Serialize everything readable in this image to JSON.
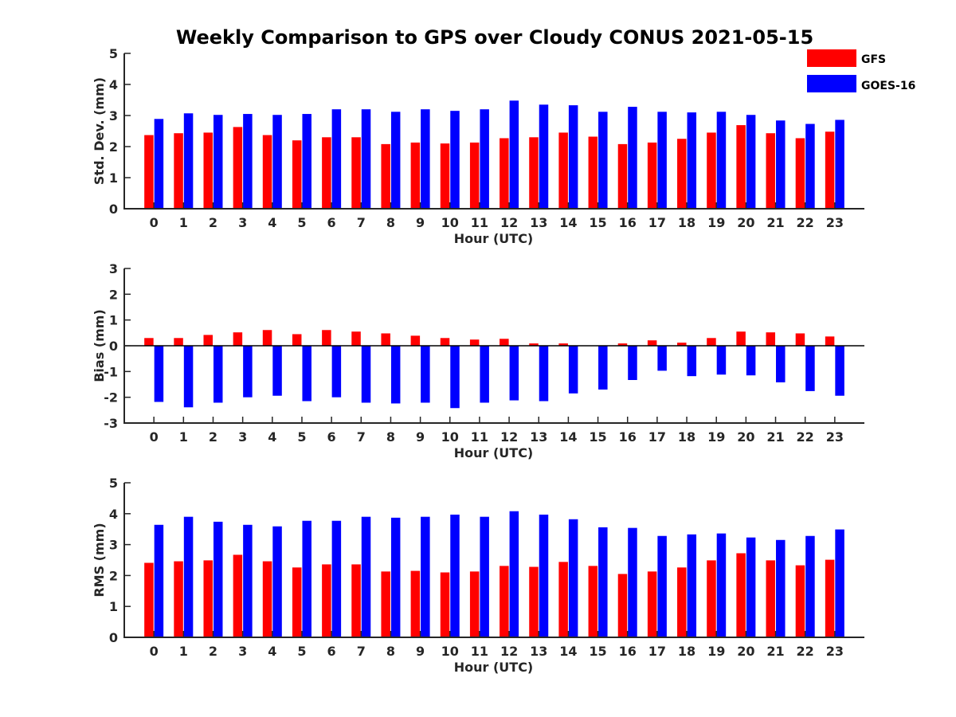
{
  "title": "Weekly Comparison to GPS over Cloudy CONUS 2021-05-15",
  "colors": {
    "GFS": "#ff0000",
    "GOES-16": "#0000ff"
  },
  "legend": {
    "placement": "top-right",
    "entries": [
      "GFS",
      "GOES-16"
    ]
  },
  "chart_data": [
    {
      "type": "bar",
      "xlabel": "Hour (UTC)",
      "ylabel": "Std. Dev. (mm)",
      "ylim": [
        0,
        5
      ],
      "yticks": [
        0,
        1,
        2,
        3,
        4,
        5
      ],
      "grid": false,
      "categories": [
        "0",
        "1",
        "2",
        "3",
        "4",
        "5",
        "6",
        "7",
        "8",
        "9",
        "10",
        "11",
        "12",
        "13",
        "14",
        "15",
        "16",
        "17",
        "18",
        "19",
        "20",
        "21",
        "22",
        "23"
      ],
      "series": [
        {
          "name": "GFS",
          "values": [
            2.37,
            2.43,
            2.45,
            2.63,
            2.37,
            2.2,
            2.3,
            2.3,
            2.08,
            2.13,
            2.1,
            2.13,
            2.27,
            2.3,
            2.45,
            2.32,
            2.08,
            2.13,
            2.25,
            2.45,
            2.69,
            2.43,
            2.27,
            2.48
          ]
        },
        {
          "name": "GOES-16",
          "values": [
            2.89,
            3.07,
            3.02,
            3.05,
            3.02,
            3.05,
            3.2,
            3.2,
            3.12,
            3.2,
            3.15,
            3.2,
            3.48,
            3.35,
            3.33,
            3.12,
            3.28,
            3.12,
            3.1,
            3.12,
            3.02,
            2.84,
            2.73,
            2.86
          ]
        }
      ]
    },
    {
      "type": "bar",
      "xlabel": "Hour (UTC)",
      "ylabel": "Bias (mm)",
      "ylim": [
        -3,
        3
      ],
      "yticks": [
        -3,
        -2,
        -1,
        0,
        1,
        2,
        3
      ],
      "grid": false,
      "categories": [
        "0",
        "1",
        "2",
        "3",
        "4",
        "5",
        "6",
        "7",
        "8",
        "9",
        "10",
        "11",
        "12",
        "13",
        "14",
        "15",
        "16",
        "17",
        "18",
        "19",
        "20",
        "21",
        "22",
        "23"
      ],
      "series": [
        {
          "name": "GFS",
          "values": [
            0.3,
            0.3,
            0.42,
            0.52,
            0.61,
            0.45,
            0.61,
            0.55,
            0.48,
            0.39,
            0.3,
            0.24,
            0.27,
            0.09,
            0.09,
            0.0,
            0.09,
            0.21,
            0.12,
            0.3,
            0.55,
            0.52,
            0.48,
            0.36
          ]
        },
        {
          "name": "GOES-16",
          "values": [
            -2.18,
            -2.39,
            -2.21,
            -2.0,
            -1.94,
            -2.15,
            -2.0,
            -2.21,
            -2.24,
            -2.21,
            -2.42,
            -2.21,
            -2.12,
            -2.15,
            -1.85,
            -1.7,
            -1.33,
            -0.97,
            -1.18,
            -1.12,
            -1.15,
            -1.42,
            -1.76,
            -1.94
          ]
        }
      ]
    },
    {
      "type": "bar",
      "xlabel": "Hour (UTC)",
      "ylabel": "RMS (mm)",
      "ylim": [
        0,
        5
      ],
      "yticks": [
        0,
        1,
        2,
        3,
        4,
        5
      ],
      "grid": false,
      "categories": [
        "0",
        "1",
        "2",
        "3",
        "4",
        "5",
        "6",
        "7",
        "8",
        "9",
        "10",
        "11",
        "12",
        "13",
        "14",
        "15",
        "16",
        "17",
        "18",
        "19",
        "20",
        "21",
        "22",
        "23"
      ],
      "series": [
        {
          "name": "GFS",
          "values": [
            2.41,
            2.46,
            2.49,
            2.67,
            2.46,
            2.26,
            2.36,
            2.36,
            2.13,
            2.15,
            2.1,
            2.13,
            2.31,
            2.28,
            2.44,
            2.31,
            2.05,
            2.13,
            2.26,
            2.49,
            2.72,
            2.49,
            2.33,
            2.51
          ]
        },
        {
          "name": "GOES-16",
          "values": [
            3.64,
            3.9,
            3.74,
            3.64,
            3.59,
            3.77,
            3.77,
            3.9,
            3.87,
            3.9,
            3.97,
            3.9,
            4.08,
            3.97,
            3.82,
            3.56,
            3.54,
            3.28,
            3.33,
            3.36,
            3.23,
            3.15,
            3.28,
            3.49
          ]
        }
      ]
    }
  ]
}
